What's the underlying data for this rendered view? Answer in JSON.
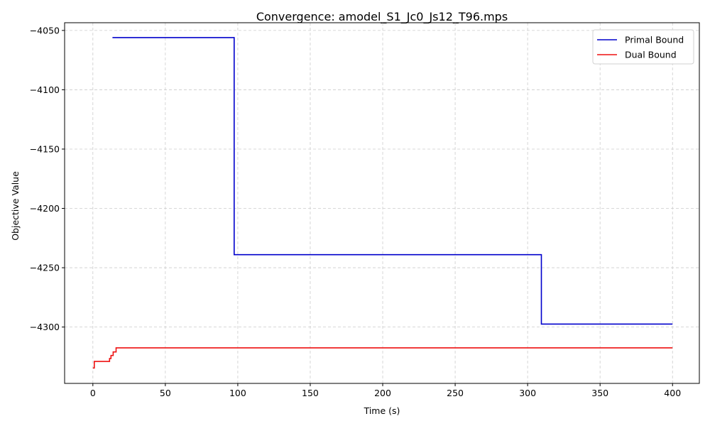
{
  "chart_data": {
    "type": "line",
    "title": "Convergence: amodel_S1_Jc0_Js12_T96.mps",
    "xlabel": "Time (s)",
    "ylabel": "Objective Value",
    "xlim": [
      -19.5,
      418.5
    ],
    "ylim": [
      -4347.5,
      -4043.5
    ],
    "xticks": [
      0,
      50,
      100,
      150,
      200,
      250,
      300,
      350,
      400
    ],
    "yticks": [
      -4050,
      -4100,
      -4150,
      -4200,
      -4250,
      -4300
    ],
    "grid": true,
    "legend_position": "top-right",
    "series": [
      {
        "name": "Primal Bound",
        "color": "#0000cc",
        "step": true,
        "x": [
          13.5,
          97.5,
          309.5,
          400
        ],
        "y": [
          -4056,
          -4239,
          -4297.5,
          -4297.5
        ]
      },
      {
        "name": "Dual Bound",
        "color": "#ee1111",
        "step": true,
        "x": [
          0,
          1,
          11.5,
          12.5,
          14,
          16,
          400
        ],
        "y": [
          -4334.5,
          -4329,
          -4326.5,
          -4324,
          -4321,
          -4317.5,
          -4317.5
        ]
      }
    ]
  }
}
